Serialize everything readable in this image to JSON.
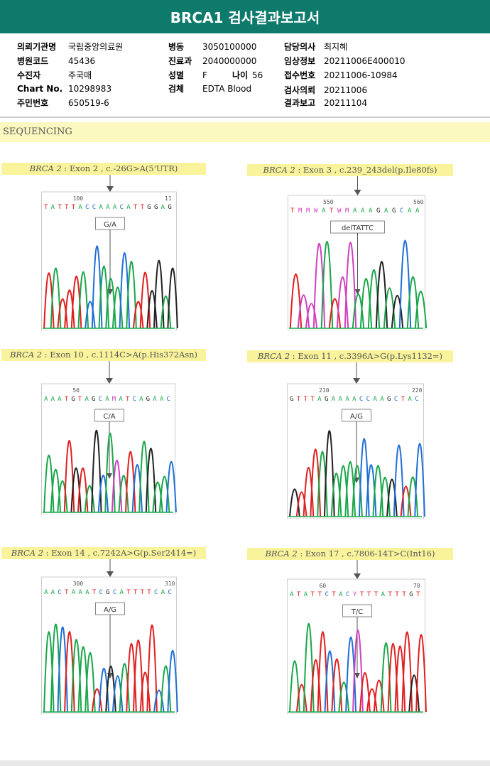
{
  "title": "BRCA1 검사결과보고서",
  "info": [
    {
      "label": "의뢰기관명",
      "value": "국립중앙의료원"
    },
    {
      "label": "병원코드",
      "value": "45436"
    },
    {
      "label": "수진자",
      "value": "주국매"
    },
    {
      "label": "Chart No.",
      "value": "10298983"
    },
    {
      "label": "주민번호",
      "value": "650519-6"
    },
    {
      "label": "병동",
      "value": "3050100000"
    },
    {
      "label": "진료과",
      "value": "2040000000"
    },
    {
      "label": "성별",
      "value": "F"
    },
    {
      "label": "나이",
      "value": "56"
    },
    {
      "label": "검체",
      "value": "EDTA Blood"
    },
    {
      "label": "담당의사",
      "value": "최지혜"
    },
    {
      "label": "임상정보",
      "value": "20211006E400010"
    },
    {
      "label": "접수번호",
      "value": "20211006-10984"
    },
    {
      "label": "검사의뢰",
      "value": "20211006"
    },
    {
      "label": "결과보고",
      "value": "20211104"
    }
  ],
  "section": "SEQUENCING",
  "panels": [
    {
      "gene": "BRCA 2",
      "desc": " : Exon 2 , c.-26G>A(5'UTR)",
      "seq": "TATTTACCAAACATTGGAG",
      "ticks": [
        "100",
        "11"
      ],
      "call": "G/A"
    },
    {
      "gene": "BRCA 2",
      "desc": " : Exon 3 , c.239_243del(p.Ile80fs)",
      "seq": "TMMWATWMAAAGAGCAA",
      "ticks": [
        "550",
        "560"
      ],
      "call": "delTATTC"
    },
    {
      "gene": "BRCA 2",
      "desc": " : Exon 10 , c.1114C>A(p.His372Asn)",
      "seq": "AAATGTAGCAMATCAGAAC",
      "ticks": [
        "50",
        ""
      ],
      "call": "C/A"
    },
    {
      "gene": "BRCA 2",
      "desc": " : Exon 11 , c.3396A>G(p.Lys1132=)",
      "seq": "GTTTAGAAAACCAAGCTAC",
      "ticks": [
        "210",
        "220"
      ],
      "call": "A/G"
    },
    {
      "gene": "BRCA 2",
      "desc": " : Exon 14 , c.7242A>G(p.Ser2414=)",
      "seq": "AACTAAATCGCATTTTCAC",
      "ticks": [
        "300",
        "310"
      ],
      "call": "A/G"
    },
    {
      "gene": "BRCA 2",
      "desc": " : Exon 17 , c.7806-14T>C(Int16)",
      "seq": "ATATTCTACYTTTATTTGT",
      "ticks": [
        "60",
        "70"
      ],
      "call": "T/C"
    }
  ],
  "colors": {
    "A": "#1aa64a",
    "C": "#1f6fd6",
    "G": "#222222",
    "T": "#e02020",
    "other": "#d040c0",
    "header": "#0e7a6c",
    "label_bg": "#f9f49c"
  }
}
